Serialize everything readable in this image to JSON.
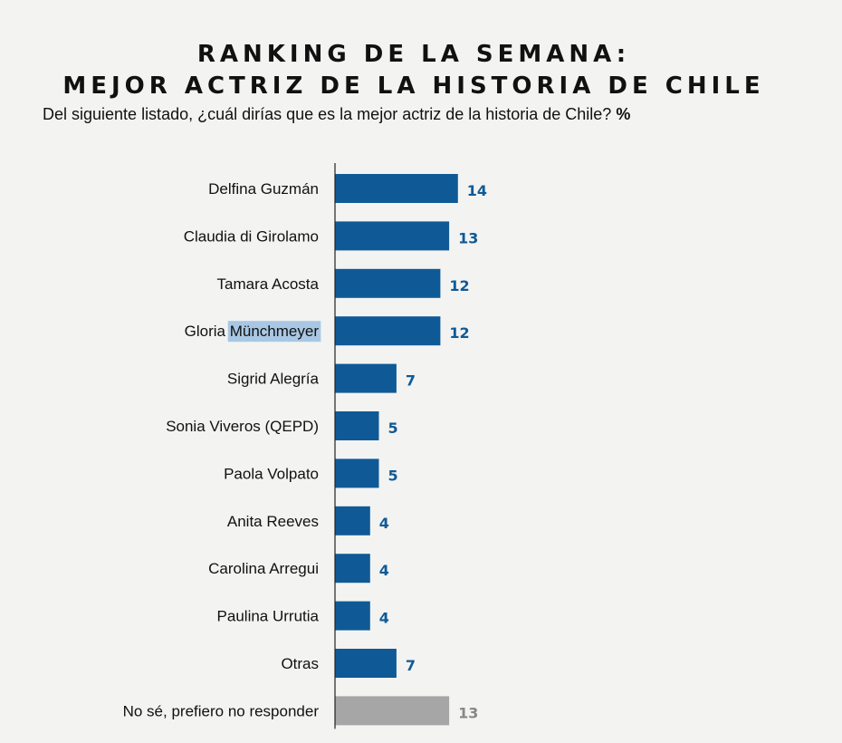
{
  "header": {
    "title_line1": "RANKING DE LA SEMANA:",
    "title_line2": "MEJOR ACTRIZ DE LA HISTORIA DE CHILE",
    "subtitle": "Del siguiente listado, ¿cuál dirías que es la mejor actriz de la historia de Chile?",
    "unit": "%"
  },
  "colors": {
    "bar": "#0f5a96",
    "bar_nonresponse": "#a6a6a6",
    "value_text": "#0f5a96",
    "value_text_nonresponse": "#888888",
    "highlight": "#a9c7e4"
  },
  "chart_data": {
    "type": "bar",
    "orientation": "horizontal",
    "title": "RANKING DE LA SEMANA: MEJOR ACTRIZ DE LA HISTORIA DE CHILE",
    "unit": "%",
    "categories": [
      "Delfina Guzmán",
      "Claudia di Girolamo",
      "Tamara Acosta",
      "Gloria Münchmeyer",
      "Sigrid Alegría",
      "Sonia Viveros (QEPD)",
      "Paola Volpato",
      "Anita Reeves",
      "Carolina Arregui",
      "Paulina Urrutia",
      "Otras",
      "No sé, prefiero no responder"
    ],
    "values": [
      14,
      13,
      12,
      12,
      7,
      5,
      5,
      4,
      4,
      4,
      7,
      13
    ],
    "highlighted_text": {
      "category_index": 3,
      "text": "Münchmeyer"
    },
    "grid": false,
    "legend": "none"
  }
}
